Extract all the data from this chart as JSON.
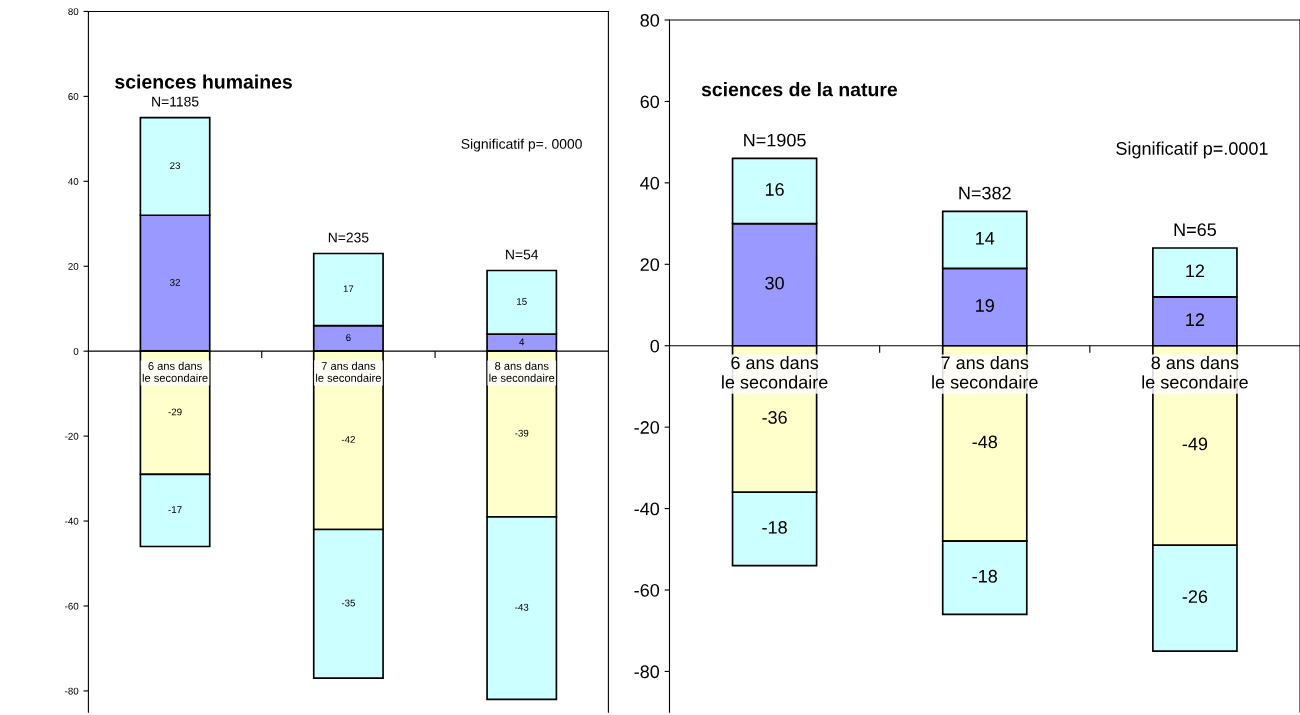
{
  "chart_data": [
    {
      "type": "bar",
      "title": "sciences humaines",
      "stacked": true,
      "data_labels": true,
      "categories": [
        "6 ans dans le secondaire",
        "7 ans dans le secondaire",
        "8 ans dans le secondaire"
      ],
      "series": [
        {
          "color": "#9999ff",
          "values": [
            32,
            6,
            4
          ]
        },
        {
          "color": "#ccffff",
          "values": [
            23,
            17,
            15
          ]
        },
        {
          "color": "#ffffcc",
          "values": [
            -29,
            -42,
            -39
          ]
        },
        {
          "color": "#ccffff",
          "values": [
            -17,
            -35,
            -43
          ]
        }
      ],
      "ylim": [
        -85,
        80
      ],
      "yticks": [
        -80,
        -60,
        -40,
        -20,
        0,
        20,
        40,
        60,
        80
      ],
      "annotations": [
        "N=1185",
        "N=235",
        "N=54",
        "Significatif p=. 0000"
      ]
    },
    {
      "type": "bar",
      "title": "sciences de la nature",
      "stacked": true,
      "data_labels": true,
      "categories": [
        "6 ans dans le secondaire",
        "7 ans dans le secondaire",
        "8 ans dans le secondaire"
      ],
      "series": [
        {
          "color": "#9999ff",
          "values": [
            30,
            19,
            12
          ]
        },
        {
          "color": "#ccffff",
          "values": [
            16,
            14,
            12
          ]
        },
        {
          "color": "#ffffcc",
          "values": [
            -36,
            -48,
            -49
          ]
        },
        {
          "color": "#ccffff",
          "values": [
            -18,
            -18,
            -26
          ]
        }
      ],
      "ylim": [
        -90,
        80
      ],
      "yticks": [
        -80,
        -60,
        -40,
        -20,
        0,
        20,
        40,
        60,
        80
      ],
      "annotations": [
        "N=1905",
        "N=382",
        "N=65",
        "Significatif p=.0001"
      ]
    }
  ]
}
